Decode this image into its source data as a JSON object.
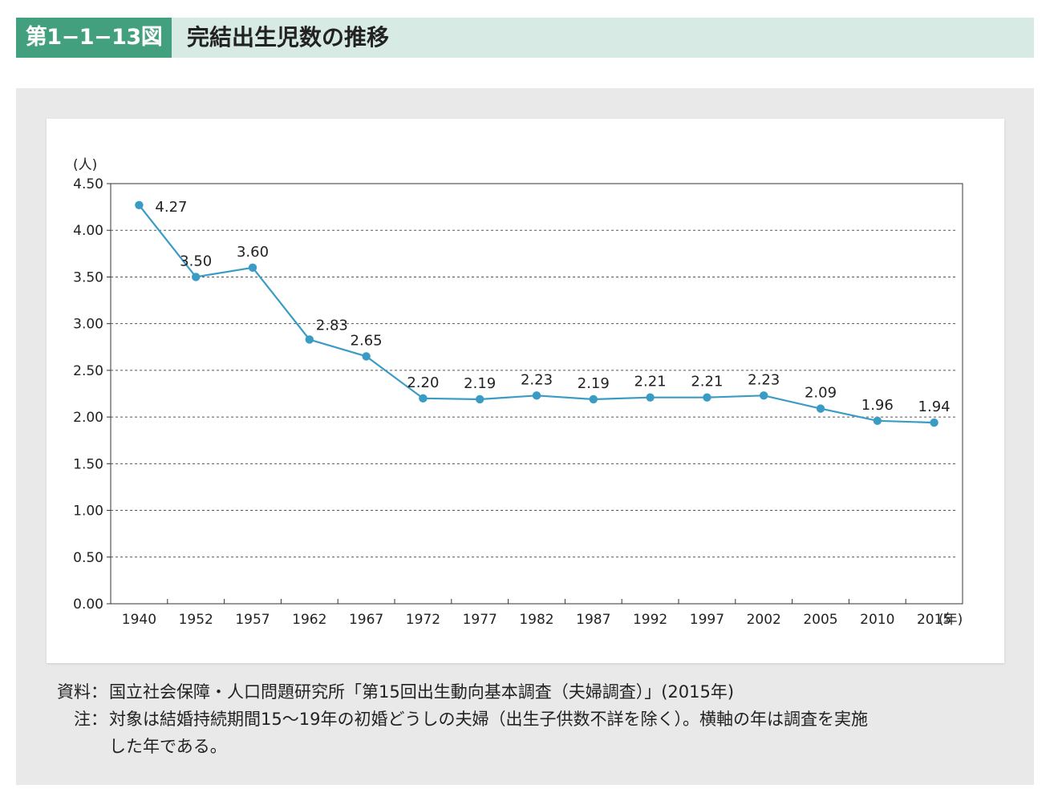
{
  "header": {
    "figure_number": "第1−1−13図",
    "title": "完結出生児数の推移"
  },
  "chart_data": {
    "type": "line",
    "title": "",
    "xlabel": "(年)",
    "ylabel": "(人)",
    "categories": [
      "1940",
      "1952",
      "1957",
      "1962",
      "1967",
      "1972",
      "1977",
      "1982",
      "1987",
      "1992",
      "1997",
      "2002",
      "2005",
      "2010",
      "2015"
    ],
    "series": [
      {
        "values": [
          4.27,
          3.5,
          3.6,
          2.83,
          2.65,
          2.2,
          2.19,
          2.23,
          2.19,
          2.21,
          2.21,
          2.23,
          2.09,
          1.96,
          1.94
        ]
      }
    ],
    "data_labels": [
      "4.27",
      "3.50",
      "3.60",
      "2.83",
      "2.65",
      "2.20",
      "2.19",
      "2.23",
      "2.19",
      "2.21",
      "2.21",
      "2.23",
      "2.09",
      "1.96",
      "1.94"
    ],
    "y_ticks": [
      "0.00",
      "0.50",
      "1.00",
      "1.50",
      "2.00",
      "2.50",
      "3.00",
      "3.50",
      "4.00",
      "4.50"
    ],
    "ylim": [
      0,
      4.5
    ],
    "grid": "horizontal dashed",
    "line_color": "#3a9cc4"
  },
  "notes": {
    "source_label": "資料：",
    "source_text": "国立社会保障・人口問題研究所「第15回出生動向基本調査（夫婦調査）」(2015年)",
    "note_label": "注：",
    "note_text_1": "対象は結婚持続期間15〜19年の初婚どうしの夫婦（出生子供数不詳を除く）。横軸の年は調査を実施",
    "note_text_2": "した年である。"
  }
}
